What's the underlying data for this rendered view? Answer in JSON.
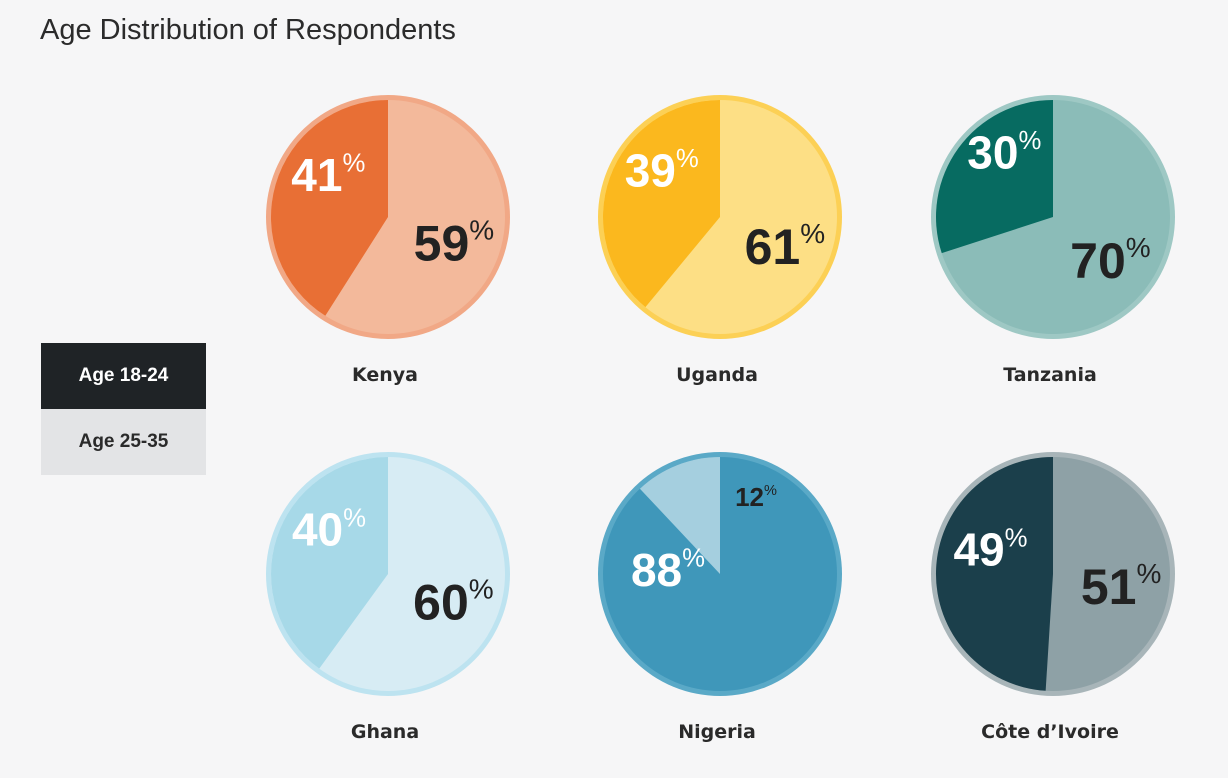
{
  "chart_data": {
    "type": "pie",
    "title": "Age Distribution of Respondents",
    "legend": {
      "placement": "left",
      "entries": [
        "Age 18-24",
        "Age 25-35"
      ]
    },
    "series_names": [
      "Age 18-24",
      "Age 25-35"
    ],
    "charts": [
      {
        "country": "Kenya",
        "values": [
          41,
          59
        ],
        "labels": [
          "41",
          "59"
        ],
        "colors": {
          "a": "#e86f35",
          "b": "#f3b99b",
          "ring": "#f1a886",
          "label_a": "#ffffff",
          "label_b": "#222222"
        }
      },
      {
        "country": "Uganda",
        "values": [
          39,
          61
        ],
        "labels": [
          "39",
          "61"
        ],
        "colors": {
          "a": "#fbb81e",
          "b": "#fddf85",
          "ring": "#fcd055",
          "label_a": "#ffffff",
          "label_b": "#222222"
        }
      },
      {
        "country": "Tanzania",
        "values": [
          30,
          70
        ],
        "labels": [
          "30",
          "70"
        ],
        "colors": {
          "a": "#076b61",
          "b": "#8bbcb8",
          "ring": "#9ec8c4",
          "label_a": "#ffffff",
          "label_b": "#222222"
        }
      },
      {
        "country": "Ghana",
        "values": [
          40,
          60
        ],
        "labels": [
          "40",
          "60"
        ],
        "colors": {
          "a": "#a7d9e8",
          "b": "#d7ecf4",
          "ring": "#bde3f0",
          "label_a": "#ffffff",
          "label_b": "#222222"
        }
      },
      {
        "country": "Nigeria",
        "values": [
          12,
          88
        ],
        "labels": [
          "12",
          "88"
        ],
        "colors": {
          "a": "#a5cfdf",
          "b": "#3f97ba",
          "ring": "#5aa9c7",
          "label_a": "#222222",
          "label_b": "#ffffff"
        }
      },
      {
        "country": "Côte d’Ivoire",
        "values": [
          49,
          51
        ],
        "labels": [
          "49",
          "51"
        ],
        "colors": {
          "a": "#1b3f4b",
          "b": "#8ea1a6",
          "ring": "#a8b5b9",
          "label_a": "#ffffff",
          "label_b": "#222222"
        }
      }
    ]
  },
  "percent_sign": "%"
}
